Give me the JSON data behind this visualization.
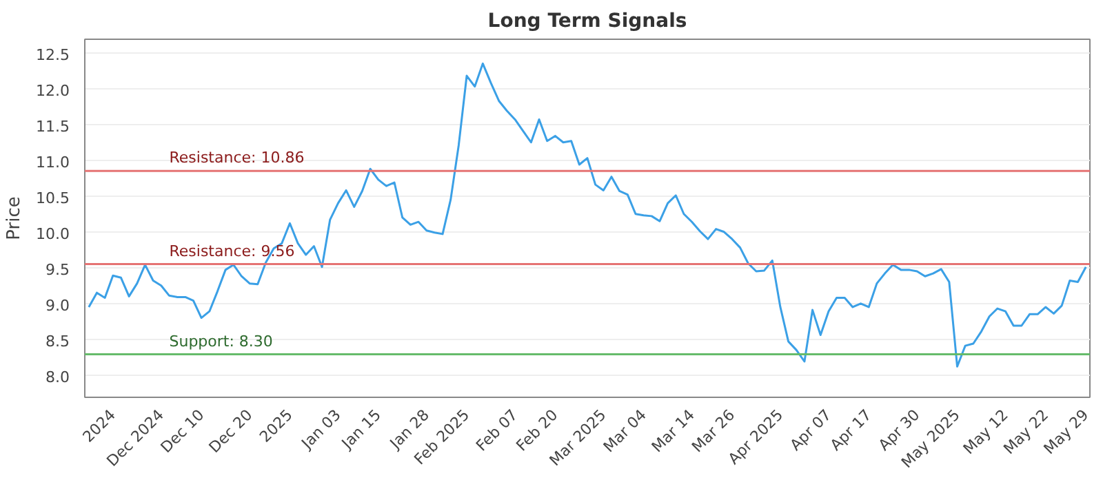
{
  "chart_data": {
    "type": "line",
    "title": "Long Term Signals",
    "ylabel": "Price",
    "categories": [
      null,
      null,
      null,
      "2024",
      null,
      null,
      null,
      null,
      null,
      "Dec 2024",
      null,
      null,
      null,
      null,
      "Dec 10",
      null,
      null,
      null,
      null,
      null,
      "Dec 20",
      null,
      null,
      null,
      null,
      "2025",
      null,
      null,
      null,
      null,
      null,
      "Jan 03",
      null,
      null,
      null,
      null,
      "Jan 15",
      null,
      null,
      null,
      null,
      null,
      "Jan 28",
      null,
      null,
      null,
      null,
      "Feb 2025",
      null,
      null,
      null,
      null,
      null,
      "Feb 07",
      null,
      null,
      null,
      null,
      "Feb 20",
      null,
      null,
      null,
      null,
      null,
      "Mar 2025",
      null,
      null,
      null,
      null,
      "Mar 04",
      null,
      null,
      null,
      null,
      null,
      "Mar 14",
      null,
      null,
      null,
      null,
      "Mar 26",
      null,
      null,
      null,
      null,
      null,
      "Apr 2025",
      null,
      null,
      null,
      null,
      null,
      "Apr 07",
      null,
      null,
      null,
      null,
      "Apr 17",
      null,
      null,
      null,
      null,
      null,
      "Apr 30",
      null,
      null,
      null,
      null,
      "May 2025",
      null,
      null,
      null,
      null,
      null,
      "May 12",
      null,
      null,
      null,
      null,
      "May 22",
      null,
      null,
      null,
      null,
      "May 29"
    ],
    "series": [
      {
        "color": "#3ba0e6",
        "values": [
          8.96,
          9.16,
          9.09,
          9.4,
          9.37,
          9.11,
          9.29,
          9.55,
          9.33,
          9.26,
          9.12,
          9.1,
          9.1,
          9.05,
          8.81,
          8.9,
          9.18,
          9.48,
          9.55,
          9.39,
          9.29,
          9.28,
          9.58,
          9.78,
          9.85,
          10.13,
          9.85,
          9.69,
          9.81,
          9.52,
          10.18,
          10.41,
          10.59,
          10.36,
          10.58,
          10.89,
          10.74,
          10.65,
          10.7,
          10.21,
          10.11,
          10.15,
          10.03,
          10.0,
          9.98,
          10.46,
          11.22,
          12.19,
          12.04,
          12.36,
          12.09,
          11.84,
          11.7,
          11.58,
          11.42,
          11.26,
          11.58,
          11.28,
          11.35,
          11.26,
          11.28,
          10.95,
          11.04,
          10.67,
          10.59,
          10.78,
          10.58,
          10.53,
          10.26,
          10.24,
          10.23,
          10.16,
          10.41,
          10.52,
          10.26,
          10.15,
          10.02,
          9.91,
          10.05,
          10.01,
          9.91,
          9.79,
          9.57,
          9.46,
          9.47,
          9.61,
          8.96,
          8.48,
          8.36,
          8.2,
          8.92,
          8.57,
          8.9,
          9.09,
          9.09,
          8.96,
          9.01,
          8.96,
          9.29,
          9.43,
          9.55,
          9.48,
          9.48,
          9.46,
          9.39,
          9.43,
          9.49,
          9.31,
          8.13,
          8.42,
          8.45,
          8.62,
          8.83,
          8.94,
          8.9,
          8.7,
          8.7,
          8.86,
          8.86,
          8.96,
          8.87,
          8.98,
          9.33,
          9.31,
          9.52
        ]
      }
    ],
    "ylim": [
      7.7,
      12.7
    ],
    "yticks": [
      {
        "value": 8.0,
        "label": "8.0"
      },
      {
        "value": 8.5,
        "label": "8.5"
      },
      {
        "value": 9.0,
        "label": "9.0"
      },
      {
        "value": 9.5,
        "label": "9.5"
      },
      {
        "value": 10.0,
        "label": "10.0"
      },
      {
        "value": 10.5,
        "label": "10.5"
      },
      {
        "value": 11.0,
        "label": "11.0"
      },
      {
        "value": 11.5,
        "label": "11.5"
      },
      {
        "value": 12.0,
        "label": "12.0"
      },
      {
        "value": 12.5,
        "label": "12.5"
      }
    ],
    "ref_lines": [
      {
        "axis": "y",
        "value": 10.86,
        "label": "Resistance: 10.86",
        "color": "#e57373"
      },
      {
        "axis": "y",
        "value": 9.56,
        "label": "Resistance: 9.56",
        "color": "#e57373"
      },
      {
        "axis": "y",
        "value": 8.3,
        "label": "Support: 8.30",
        "color": "#66bb6a"
      }
    ],
    "grid": "y",
    "marker": "none",
    "line_style": "solid"
  }
}
